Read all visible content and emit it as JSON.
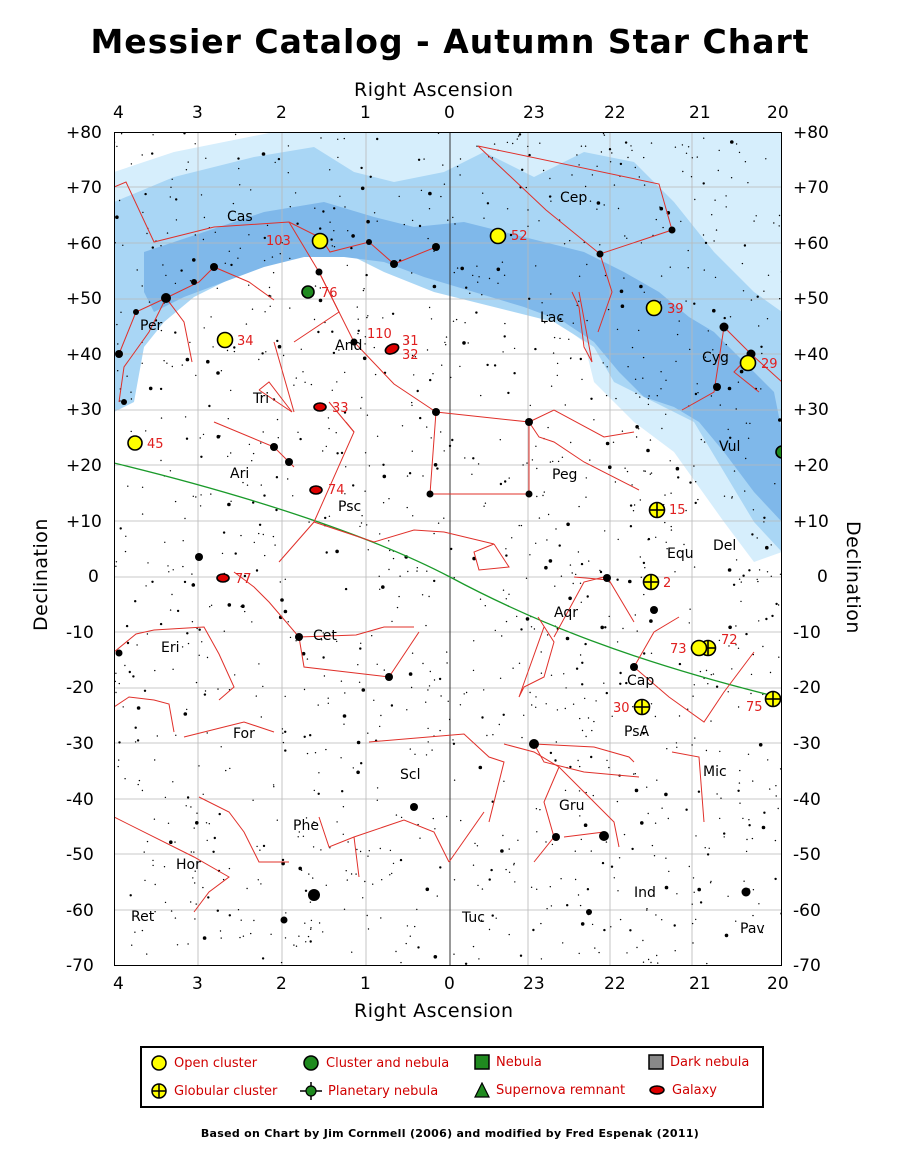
{
  "title": "Messier Catalog - Autumn Star Chart",
  "axes": {
    "ra_title": "Right Ascension",
    "dec_title": "Declination",
    "ra_ticks": [
      "4",
      "3",
      "2",
      "1",
      "0",
      "23",
      "22",
      "21",
      "20"
    ],
    "dec_ticks": [
      "+80",
      "+70",
      "+60",
      "+50",
      "+40",
      "+30",
      "+20",
      "+10",
      "0",
      "-10",
      "-20",
      "-30",
      "-40",
      "-50",
      "-60",
      "-70"
    ]
  },
  "constellations": [
    "Cas",
    "Cep",
    "Per",
    "And",
    "Lac",
    "Cyg",
    "Tri",
    "Vul",
    "Ari",
    "Peg",
    "Psc",
    "Equ",
    "Del",
    "Aqr",
    "Cet",
    "Eri",
    "Cap",
    "For",
    "PsA",
    "Scl",
    "Mic",
    "Gru",
    "Phe",
    "Hor",
    "Ind",
    "Ret",
    "Tuc",
    "Pav"
  ],
  "messier_objects": [
    {
      "label": "103",
      "type": "open-cluster"
    },
    {
      "label": "52",
      "type": "open-cluster"
    },
    {
      "label": "76",
      "type": "planetary-nebula"
    },
    {
      "label": "39",
      "type": "open-cluster"
    },
    {
      "label": "110",
      "type": "galaxy"
    },
    {
      "label": "31",
      "type": "galaxy"
    },
    {
      "label": "32",
      "type": "galaxy"
    },
    {
      "label": "34",
      "type": "open-cluster"
    },
    {
      "label": "29",
      "type": "open-cluster"
    },
    {
      "label": "33",
      "type": "galaxy"
    },
    {
      "label": "45",
      "type": "open-cluster"
    },
    {
      "label": "74",
      "type": "galaxy"
    },
    {
      "label": "15",
      "type": "globular-cluster"
    },
    {
      "label": "77",
      "type": "galaxy"
    },
    {
      "label": "2",
      "type": "globular-cluster"
    },
    {
      "label": "72",
      "type": "globular-cluster"
    },
    {
      "label": "73",
      "type": "open-cluster"
    },
    {
      "label": "30",
      "type": "globular-cluster"
    },
    {
      "label": "75",
      "type": "globular-cluster"
    }
  ],
  "legend": {
    "open_cluster": "Open cluster",
    "globular_cluster": "Globular cluster",
    "cluster_nebula": "Cluster and nebula",
    "planetary_nebula": "Planetary nebula",
    "nebula": "Nebula",
    "supernova_remnant": "Supernova remnant",
    "dark_nebula": "Dark nebula",
    "galaxy": "Galaxy"
  },
  "credit": "Based on Chart by Jim Cornmell (2006) and modified by Fred Espenak (2011)",
  "colors": {
    "milky_way_outer": "#d6eefc",
    "milky_way_mid": "#a9d6f5",
    "milky_way_inner": "#7fb8ea",
    "constellation_line": "#e0302a",
    "ecliptic": "#1a9a2a",
    "open_cluster_fill": "#ffff00",
    "galaxy_fill": "#dd0000",
    "nebula_fill": "#1f8a1f",
    "label_red": "#e02020"
  }
}
